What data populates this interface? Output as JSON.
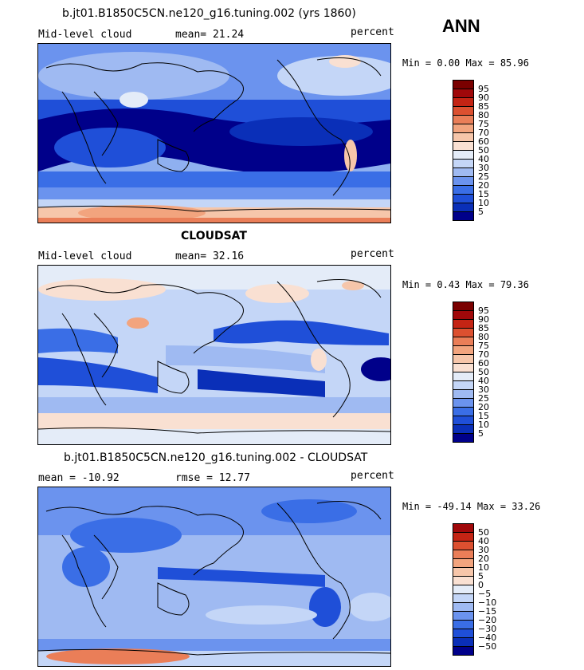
{
  "season": "ANN",
  "colors": {
    "scale": [
      "#00008a",
      "#0a2fb8",
      "#1f4fd8",
      "#3a6ee6",
      "#6b93ee",
      "#9fbaf2",
      "#c4d6f7",
      "#e4ecf8",
      "#f9e0d2",
      "#f6c6aa",
      "#f2a47e",
      "#ea7e58",
      "#dc5030",
      "#c42414",
      "#a0080a",
      "#7a0000"
    ]
  },
  "panels": [
    {
      "title": "b.jt01.B1850C5CN.ne120_g16.tuning.002 (yrs 1860)",
      "left_label": "Mid-level cloud",
      "center_label": "mean=  21.24",
      "right_label": "percent",
      "minmax": "Min =   0.00 Max =  85.96",
      "colorbar": [
        "95",
        "90",
        "85",
        "80",
        "75",
        "70",
        "60",
        "50",
        "40",
        "30",
        "25",
        "20",
        "15",
        "10",
        "5"
      ]
    },
    {
      "title": "CLOUDSAT",
      "left_label": "Mid-level cloud",
      "center_label": "mean=  32.16",
      "right_label": "percent",
      "minmax": "Min =   0.43 Max =  79.36",
      "colorbar": [
        "95",
        "90",
        "85",
        "80",
        "75",
        "70",
        "60",
        "50",
        "40",
        "30",
        "25",
        "20",
        "15",
        "10",
        "5"
      ]
    },
    {
      "title": "b.jt01.B1850C5CN.ne120_g16.tuning.002 - CLOUDSAT",
      "left_label": "mean = -10.92",
      "center_label": "rmse =  12.77",
      "right_label": "percent",
      "minmax": "Min = -49.14 Max =  33.26",
      "colorbar": [
        "50",
        "40",
        "30",
        "20",
        "10",
        "5",
        "0",
        "−5",
        "−10",
        "−15",
        "−20",
        "−30",
        "−40",
        "−50"
      ]
    }
  ]
}
